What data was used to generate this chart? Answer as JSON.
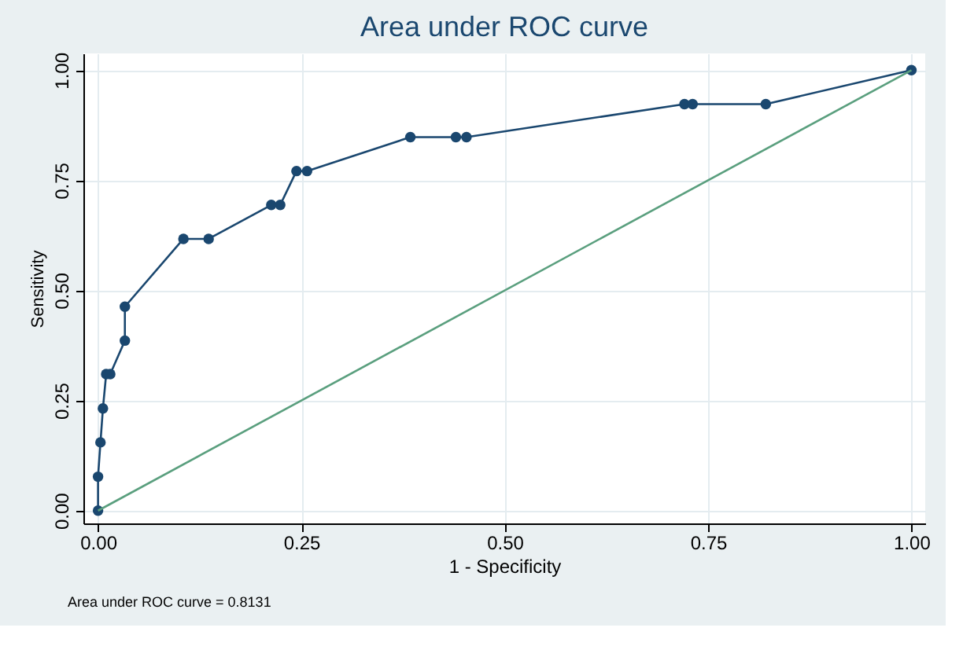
{
  "chart_data": {
    "type": "line",
    "title": "Area under ROC curve",
    "xlabel": "1 - Specificity",
    "ylabel": "Sensitivity",
    "xlim": [
      -0.018,
      1.017
    ],
    "ylim": [
      -0.029,
      1.038
    ],
    "xticks": [
      {
        "value": 0,
        "label": "0.00"
      },
      {
        "value": 0.25,
        "label": "0.25"
      },
      {
        "value": 0.5,
        "label": "0.50"
      },
      {
        "value": 0.75,
        "label": "0.75"
      },
      {
        "value": 1,
        "label": "1.00"
      }
    ],
    "yticks": [
      {
        "value": 0,
        "label": "0.00"
      },
      {
        "value": 0.25,
        "label": "0.25"
      },
      {
        "value": 0.5,
        "label": "0.50"
      },
      {
        "value": 0.75,
        "label": "0.75"
      },
      {
        "value": 1,
        "label": "1.00"
      }
    ],
    "grid": true,
    "series": [
      {
        "color": "#1a476f",
        "marker": "circle",
        "x": [
          0,
          0,
          0.003,
          0.006,
          0.01,
          0.015,
          0.033,
          0.033,
          0.105,
          0.136,
          0.213,
          0.224,
          0.244,
          0.257,
          0.384,
          0.44,
          0.453,
          0.721,
          0.731,
          0.821,
          1.0
        ],
        "values": [
          0,
          0.077,
          0.155,
          0.232,
          0.31,
          0.31,
          0.386,
          0.463,
          0.617,
          0.617,
          0.694,
          0.694,
          0.771,
          0.771,
          0.848,
          0.848,
          0.848,
          0.923,
          0.923,
          0.923,
          1.0
        ]
      },
      {
        "color": "#5a9f7e",
        "marker": "none",
        "x": [
          0,
          1
        ],
        "values": [
          0,
          1
        ]
      }
    ],
    "annotations": [
      "Area under ROC curve = 0.8131"
    ]
  }
}
